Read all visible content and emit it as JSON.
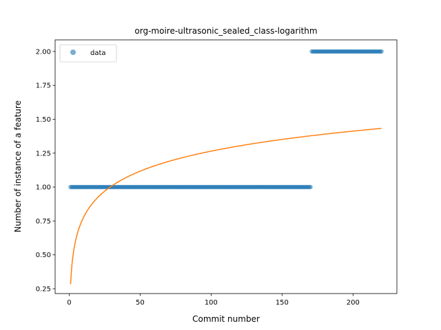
{
  "chart_data": {
    "type": "scatter",
    "title": "org-moire-ultrasonic_sealed_class-logarithm",
    "xlabel": "Commit number",
    "ylabel": "Number of instance of a feature",
    "xlim": [
      -9.9,
      230.9
    ],
    "ylim": [
      0.2143,
      2.0857
    ],
    "xticks": [
      0,
      50,
      100,
      150,
      200
    ],
    "xtick_labels": [
      "0",
      "50",
      "100",
      "150",
      "200"
    ],
    "yticks": [
      0.25,
      0.5,
      0.75,
      1.0,
      1.25,
      1.5,
      1.75,
      2.0
    ],
    "ytick_labels": [
      "0.25",
      "0.50",
      "0.75",
      "1.00",
      "1.25",
      "1.50",
      "1.75",
      "2.00"
    ],
    "grid": false,
    "legend": {
      "position": "upper-left",
      "entries": [
        "data"
      ]
    },
    "series": [
      {
        "name": "data",
        "kind": "scatter",
        "color": "#1f77b4",
        "segments": [
          {
            "x_start": 1,
            "x_end": 170,
            "y": 1
          },
          {
            "x_start": 171,
            "x_end": 220,
            "y": 2
          }
        ]
      },
      {
        "kind": "line",
        "color": "#ff7f0e",
        "function": "logarithm",
        "a": 0.2835,
        "b": 0.2131,
        "x_range": [
          1,
          220
        ]
      }
    ]
  }
}
